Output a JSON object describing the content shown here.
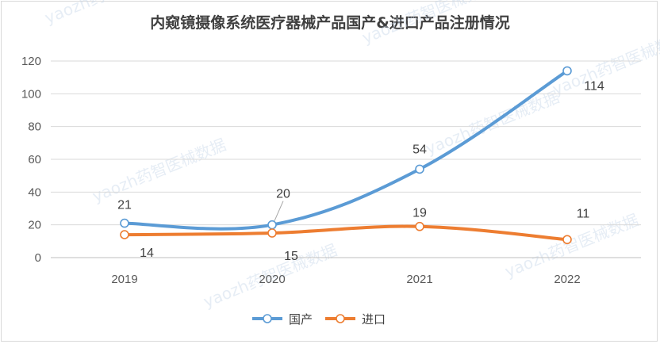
{
  "chart_data": {
    "type": "line",
    "title": "内窥镜摄像系统医疗器械产品国产&进口产品注册情况",
    "categories": [
      "2019",
      "2020",
      "2021",
      "2022"
    ],
    "series": [
      {
        "name": "国产",
        "values": [
          21,
          20,
          54,
          114
        ],
        "color": "#5b9bd5"
      },
      {
        "name": "进口",
        "values": [
          14,
          15,
          19,
          11
        ],
        "color": "#ed7d31"
      }
    ],
    "ylim": [
      0,
      120
    ],
    "yticks": [
      0,
      20,
      40,
      60,
      80,
      100,
      120
    ],
    "grid": true,
    "legend_position": "bottom",
    "smooth": true
  },
  "watermark": "yaozh药智医械数据"
}
